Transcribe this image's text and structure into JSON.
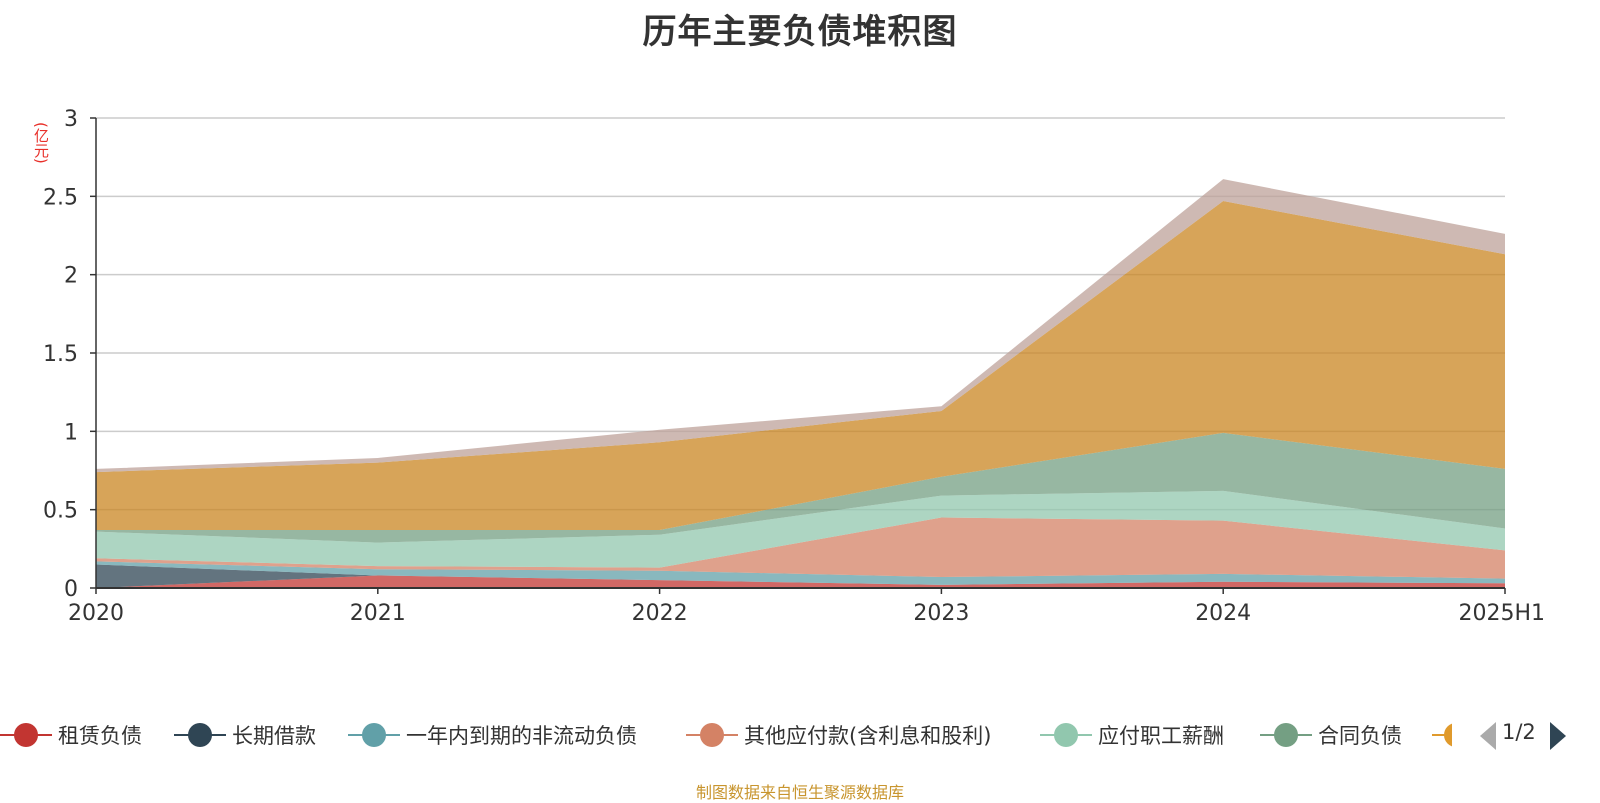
{
  "title": "历年主要负债堆积图",
  "unit_label": "(亿元)",
  "source": "制图数据来自恒生聚源数据库",
  "pager": {
    "text": "1/2"
  },
  "legend_overflow_color": "#e09a2c",
  "chart_data": {
    "type": "area",
    "stacked": true,
    "categories": [
      "2020",
      "2021",
      "2022",
      "2023",
      "2024",
      "2025H1"
    ],
    "ylim": [
      0,
      3
    ],
    "yticks": [
      "0",
      "0.5",
      "1",
      "1.5",
      "2",
      "2.5",
      "3"
    ],
    "grid": true,
    "legend_position": "bottom",
    "series": [
      {
        "name": "租赁负债",
        "color": "#c23531",
        "values": [
          0.0,
          0.08,
          0.05,
          0.02,
          0.04,
          0.03
        ]
      },
      {
        "name": "长期借款",
        "color": "#2f4554",
        "values": [
          0.15,
          0.0,
          0.0,
          0.0,
          0.0,
          0.0
        ]
      },
      {
        "name": "一年内到期的非流动负债",
        "color": "#61a0a8",
        "values": [
          0.02,
          0.04,
          0.06,
          0.05,
          0.05,
          0.03
        ]
      },
      {
        "name": "其他应付款(含利息和股利)",
        "color": "#d48265",
        "values": [
          0.02,
          0.02,
          0.02,
          0.38,
          0.34,
          0.18
        ]
      },
      {
        "name": "应付职工薪酬",
        "color": "#91c7ae",
        "values": [
          0.17,
          0.15,
          0.21,
          0.14,
          0.19,
          0.14
        ]
      },
      {
        "name": "合同负债",
        "color": "#749f83",
        "values": [
          0.01,
          0.08,
          0.03,
          0.12,
          0.37,
          0.38
        ]
      },
      {
        "color": "#ca8622",
        "values": [
          0.37,
          0.43,
          0.56,
          0.42,
          1.48,
          1.37
        ]
      },
      {
        "color": "#bda29a",
        "values": [
          0.02,
          0.03,
          0.08,
          0.03,
          0.14,
          0.13
        ]
      }
    ]
  }
}
